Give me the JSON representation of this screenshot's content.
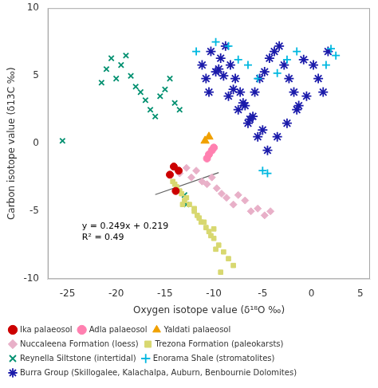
{
  "chart_data": {
    "type": "scatter",
    "xlabel": "Oxygen isotope value (δ¹⁸O ‰)",
    "ylabel": "Carbon isotope value (δ13C ‰)",
    "xlim": [
      -27,
      6
    ],
    "ylim": [
      -10,
      10
    ],
    "xticks": [
      -25,
      -20,
      -15,
      -10,
      -5,
      0,
      5
    ],
    "yticks": [
      -10,
      -5,
      0,
      5,
      10
    ],
    "grid": false,
    "legend": "bottom",
    "annotations": [
      {
        "text": [
          "y = 0.249x + 0.219",
          "R² = 0.49"
        ],
        "x": -23.5,
        "y": -6.5
      }
    ],
    "series": [
      {
        "name": "Ika palaeosol",
        "color": "#cc0000",
        "marker": "circle",
        "x": [
          -14.5,
          -14.1,
          -13.6,
          -13.9
        ],
        "y": [
          -2.3,
          -1.7,
          -2.0,
          -3.5
        ]
      },
      {
        "name": "Adla palaeosol",
        "color": "#ff80b0",
        "marker": "circle",
        "x": [
          -10.2,
          -10.5,
          -10.0,
          -10.7
        ],
        "y": [
          -0.5,
          -0.8,
          -0.3,
          -1.1
        ]
      },
      {
        "name": "Yaldati palaeosol",
        "color": "#f0a000",
        "marker": "triangle",
        "x": [
          -10.9,
          -10.5
        ],
        "y": [
          0.2,
          0.5
        ]
      },
      {
        "name": "Nuccaleena Formation (loess)",
        "color": "#e8b0c8",
        "marker": "diamond",
        "x": [
          -13.5,
          -12.8,
          -12.3,
          -11.8,
          -11.2,
          -10.7,
          -10.2,
          -9.7,
          -9.2,
          -8.7,
          -8.0,
          -7.5,
          -6.8,
          -6.2,
          -5.5,
          -4.8,
          -4.2
        ],
        "y": [
          -2.2,
          -1.8,
          -2.5,
          -2.0,
          -2.8,
          -3.0,
          -2.5,
          -3.3,
          -3.7,
          -4.0,
          -4.5,
          -3.8,
          -4.2,
          -5.0,
          -4.8,
          -5.3,
          -5.0
        ]
      },
      {
        "name": "Trezona Formation (paleokarsts)",
        "color": "#d8d870",
        "marker": "square",
        "x": [
          -14.2,
          -13.8,
          -13.3,
          -13.0,
          -12.5,
          -12.0,
          -11.7,
          -11.3,
          -10.8,
          -10.5,
          -10.0,
          -9.5,
          -9.0,
          -8.5,
          -8.0,
          -13.5,
          -12.8,
          -12.0,
          -11.5,
          -10.3,
          -9.8,
          -14.0,
          -13.2,
          -11.0,
          -10.0,
          -9.3
        ],
        "y": [
          -2.8,
          -3.2,
          -3.7,
          -4.2,
          -4.5,
          -5.0,
          -5.3,
          -5.8,
          -6.2,
          -6.5,
          -7.0,
          -7.5,
          -8.0,
          -8.5,
          -9.0,
          -3.5,
          -4.0,
          -4.8,
          -5.5,
          -6.8,
          -7.8,
          -3.0,
          -4.5,
          -5.8,
          -6.3,
          -9.5
        ]
      },
      {
        "name": "Reynella Siltstone (intertidal)",
        "color": "#009070",
        "marker": "x",
        "x": [
          -25.5,
          -21.5,
          -21.0,
          -20.5,
          -20.0,
          -19.5,
          -19.0,
          -18.5,
          -18.0,
          -17.5,
          -17.0,
          -16.5,
          -16.0,
          -15.5,
          -15.0,
          -14.5,
          -14.0,
          -13.5,
          -13.0,
          -12.8
        ],
        "y": [
          0.2,
          4.5,
          5.5,
          6.3,
          4.8,
          5.8,
          6.5,
          5.0,
          4.2,
          3.8,
          3.2,
          2.5,
          2.0,
          3.5,
          4.0,
          4.8,
          3.0,
          2.5,
          -3.8,
          -4.5
        ]
      },
      {
        "name": "Enorama Shale (stromatolites)",
        "color": "#00b8e0",
        "marker": "plus",
        "x": [
          -11.8,
          -9.8,
          -8.5,
          -7.5,
          -6.5,
          -5.5,
          -4.5,
          -3.5,
          -2.5,
          -1.5,
          2.5,
          -5.0,
          1.5,
          2.0
        ],
        "y": [
          6.8,
          7.5,
          7.2,
          6.2,
          5.8,
          4.8,
          -2.2,
          5.2,
          6.2,
          6.8,
          6.5,
          -2.0,
          5.8,
          7.0
        ]
      },
      {
        "name": "Burra Group (Skillogalee, Kalachalpa, Auburn, Benbournie Dolomites)",
        "color": "#1a1aaa",
        "marker": "star",
        "x": [
          -11.2,
          -10.8,
          -10.3,
          -9.8,
          -9.3,
          -8.8,
          -8.3,
          -7.8,
          -7.3,
          -6.8,
          -6.3,
          -5.8,
          -5.3,
          -4.8,
          -4.3,
          -3.8,
          -3.3,
          -2.8,
          -2.3,
          -1.8,
          -1.3,
          -0.8,
          0.2,
          0.7,
          1.2,
          1.7,
          -9.5,
          -8.5,
          -7.5,
          -6.5,
          -5.5,
          -4.5,
          -3.5,
          -2.5,
          -1.5,
          -0.5,
          -10.5,
          -9.0,
          -8.0,
          -7.0,
          -6.0,
          -5.0
        ],
        "y": [
          5.8,
          4.8,
          6.8,
          5.3,
          6.3,
          7.2,
          5.8,
          4.8,
          3.8,
          2.8,
          1.8,
          3.8,
          4.8,
          5.3,
          6.3,
          6.8,
          7.2,
          5.8,
          4.8,
          3.8,
          2.8,
          6.2,
          5.8,
          4.8,
          3.8,
          6.8,
          5.5,
          3.5,
          2.5,
          1.5,
          0.5,
          -0.5,
          0.5,
          1.5,
          2.5,
          3.5,
          3.8,
          5.0,
          4.0,
          3.0,
          2.0,
          1.0
        ]
      },
      {
        "type": "line",
        "color": "#606060",
        "x": [
          -16.0,
          -9.5
        ],
        "y": [
          -3.765,
          -2.1465
        ]
      }
    ]
  }
}
